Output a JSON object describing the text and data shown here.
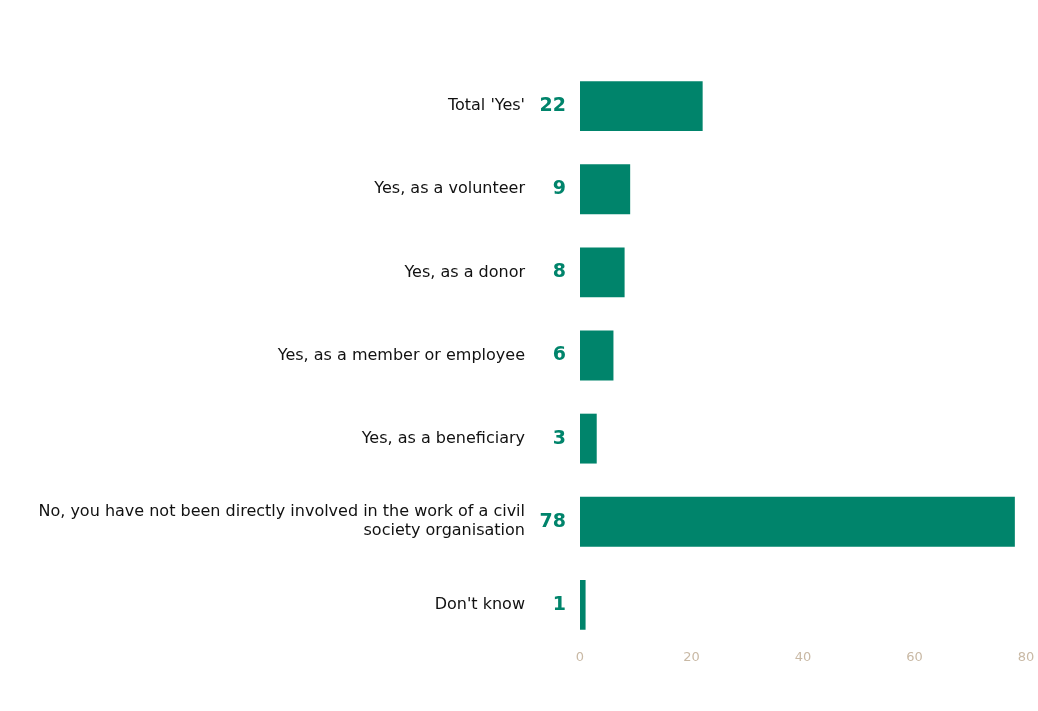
{
  "chart_data": {
    "type": "bar",
    "orientation": "horizontal",
    "categories": [
      "Total 'Yes'",
      "Yes, as a volunteer",
      "Yes, as a donor",
      "Yes, as a member or employee",
      "Yes, as a beneficiary",
      "No, you have not been directly involved in the work of a civil society organisation",
      "Don't know"
    ],
    "values": [
      22,
      9,
      8,
      6,
      3,
      78,
      1
    ],
    "color": "#00846b",
    "data_labels": true,
    "xlim": [
      0,
      80
    ],
    "xticks": [
      0,
      20,
      40,
      60,
      80
    ],
    "grid": false,
    "legend": false
  }
}
